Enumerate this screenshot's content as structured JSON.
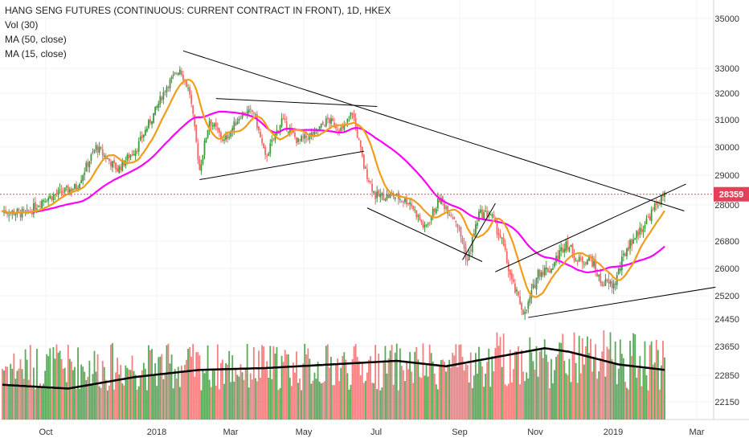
{
  "legend": {
    "title": "HANG SENG FUTURES (CONTINUOUS: CURRENT CONTRACT IN FRONT), 1D, HKEX",
    "vol": "Vol (30)",
    "ma50": "MA (50, close)",
    "ma15": "MA (15, close)"
  },
  "colors": {
    "up": "#3c9a3c",
    "down": "#f06a6a",
    "ma50": "#ff00ff",
    "ma15": "#f39c1a",
    "vol_ma": "#000000",
    "trendline": "#000000",
    "price_line": "#e4405a",
    "price_badge": "#e4405a"
  },
  "chart_data": {
    "type": "candlestick",
    "title": "HANG SENG FUTURES (CONTINUOUS: CURRENT CONTRACT IN FRONT), 1D, HKEX",
    "y_ticks": [
      "35000",
      "33000",
      "32000",
      "31000",
      "30000",
      "29000",
      "28000",
      "26800",
      "26000",
      "25200",
      "24450",
      "23650",
      "22850",
      "22150"
    ],
    "x_ticks": [
      "Oct",
      "2018",
      "Mar",
      "May",
      "Jul",
      "Sep",
      "Nov",
      "2019",
      "Mar"
    ],
    "last_price": "28359",
    "price_anchors": [
      {
        "d": 0,
        "p": 27800
      },
      {
        "d": 15,
        "p": 27700
      },
      {
        "d": 25,
        "p": 28200
      },
      {
        "d": 45,
        "p": 28600
      },
      {
        "d": 57,
        "p": 30000
      },
      {
        "d": 70,
        "p": 29200
      },
      {
        "d": 82,
        "p": 30000
      },
      {
        "d": 92,
        "p": 31200
      },
      {
        "d": 100,
        "p": 32300
      },
      {
        "d": 108,
        "p": 33000
      },
      {
        "d": 114,
        "p": 32000
      },
      {
        "d": 120,
        "p": 29200
      },
      {
        "d": 126,
        "p": 31000
      },
      {
        "d": 135,
        "p": 30200
      },
      {
        "d": 145,
        "p": 31200
      },
      {
        "d": 153,
        "p": 31300
      },
      {
        "d": 160,
        "p": 29600
      },
      {
        "d": 170,
        "p": 31000
      },
      {
        "d": 180,
        "p": 30200
      },
      {
        "d": 190,
        "p": 30500
      },
      {
        "d": 198,
        "p": 31000
      },
      {
        "d": 207,
        "p": 30600
      },
      {
        "d": 213,
        "p": 31300
      },
      {
        "d": 220,
        "p": 29300
      },
      {
        "d": 227,
        "p": 28300
      },
      {
        "d": 238,
        "p": 28300
      },
      {
        "d": 248,
        "p": 28100
      },
      {
        "d": 257,
        "p": 27200
      },
      {
        "d": 266,
        "p": 28200
      },
      {
        "d": 276,
        "p": 27500
      },
      {
        "d": 283,
        "p": 26200
      },
      {
        "d": 290,
        "p": 27700
      },
      {
        "d": 297,
        "p": 27700
      },
      {
        "d": 304,
        "p": 26800
      },
      {
        "d": 310,
        "p": 25600
      },
      {
        "d": 318,
        "p": 24600
      },
      {
        "d": 326,
        "p": 25900
      },
      {
        "d": 334,
        "p": 26000
      },
      {
        "d": 343,
        "p": 26800
      },
      {
        "d": 350,
        "p": 26200
      },
      {
        "d": 358,
        "p": 26300
      },
      {
        "d": 364,
        "p": 25600
      },
      {
        "d": 372,
        "p": 25500
      },
      {
        "d": 380,
        "p": 26600
      },
      {
        "d": 390,
        "p": 27300
      },
      {
        "d": 398,
        "p": 28000
      },
      {
        "d": 403,
        "p": 28359
      }
    ],
    "volume_ma": [
      {
        "d": 0,
        "v": 22600
      },
      {
        "d": 40,
        "v": 22500
      },
      {
        "d": 80,
        "v": 22800
      },
      {
        "d": 120,
        "v": 23000
      },
      {
        "d": 160,
        "v": 23050
      },
      {
        "d": 200,
        "v": 23150
      },
      {
        "d": 240,
        "v": 23250
      },
      {
        "d": 270,
        "v": 23100
      },
      {
        "d": 300,
        "v": 23350
      },
      {
        "d": 330,
        "v": 23600
      },
      {
        "d": 345,
        "v": 23500
      },
      {
        "d": 375,
        "v": 23150
      },
      {
        "d": 403,
        "v": 23000
      }
    ],
    "trendlines": [
      {
        "p1": {
          "d": 110,
          "p": 33700
        },
        "p2": {
          "d": 415,
          "p": 27800
        }
      },
      {
        "p1": {
          "d": 120,
          "p": 28850
        },
        "p2": {
          "d": 220,
          "p": 29850
        }
      },
      {
        "p1": {
          "d": 130,
          "p": 31800
        },
        "p2": {
          "d": 228,
          "p": 31500
        }
      },
      {
        "p1": {
          "d": 222,
          "p": 27900
        },
        "p2": {
          "d": 292,
          "p": 26200
        }
      },
      {
        "p1": {
          "d": 280,
          "p": 26250
        },
        "p2": {
          "d": 300,
          "p": 28050
        }
      },
      {
        "p1": {
          "d": 320,
          "p": 24500
        },
        "p2": {
          "d": 434,
          "p": 25450
        }
      },
      {
        "p1": {
          "d": 300,
          "p": 25900
        },
        "p2": {
          "d": 416,
          "p": 28700
        }
      }
    ]
  }
}
